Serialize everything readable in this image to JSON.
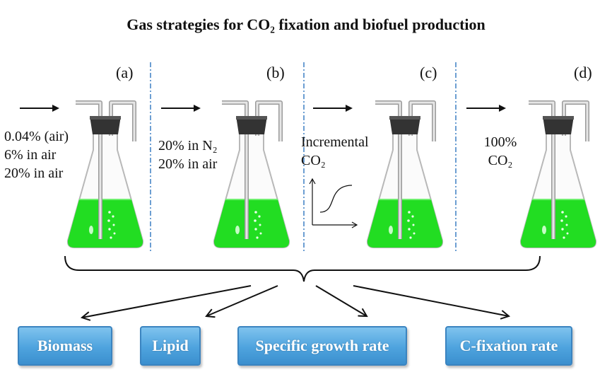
{
  "title": "Gas strategies for CO₂ fixation and biofuel production",
  "panels": [
    {
      "letter": "(a)",
      "lines": [
        "0.04% (air)",
        "6% in air",
        "20% in air"
      ]
    },
    {
      "letter": "(b)",
      "lines": [
        "20% in N₂",
        "20% in air"
      ]
    },
    {
      "letter": "(c)",
      "lines": [
        "Incremental",
        "CO₂"
      ]
    },
    {
      "letter": "(d)",
      "lines": [
        "100%",
        "CO₂"
      ]
    }
  ],
  "outcomes": [
    "Biomass",
    "Lipid",
    "Specific growth rate",
    "C-fixation rate"
  ],
  "colors": {
    "culture": "#22dd22",
    "stopper": "#333333",
    "divider": "#3c7fc4",
    "box_fill": "#4ea3de",
    "box_border": "#3b84c0",
    "box_text": "#ffffff"
  },
  "icons": {
    "flask": "erlenmeyer-flask-icon",
    "inlet_arrow": "arrow-right-icon",
    "incremental_curve": "sigmoid-curve-icon"
  }
}
